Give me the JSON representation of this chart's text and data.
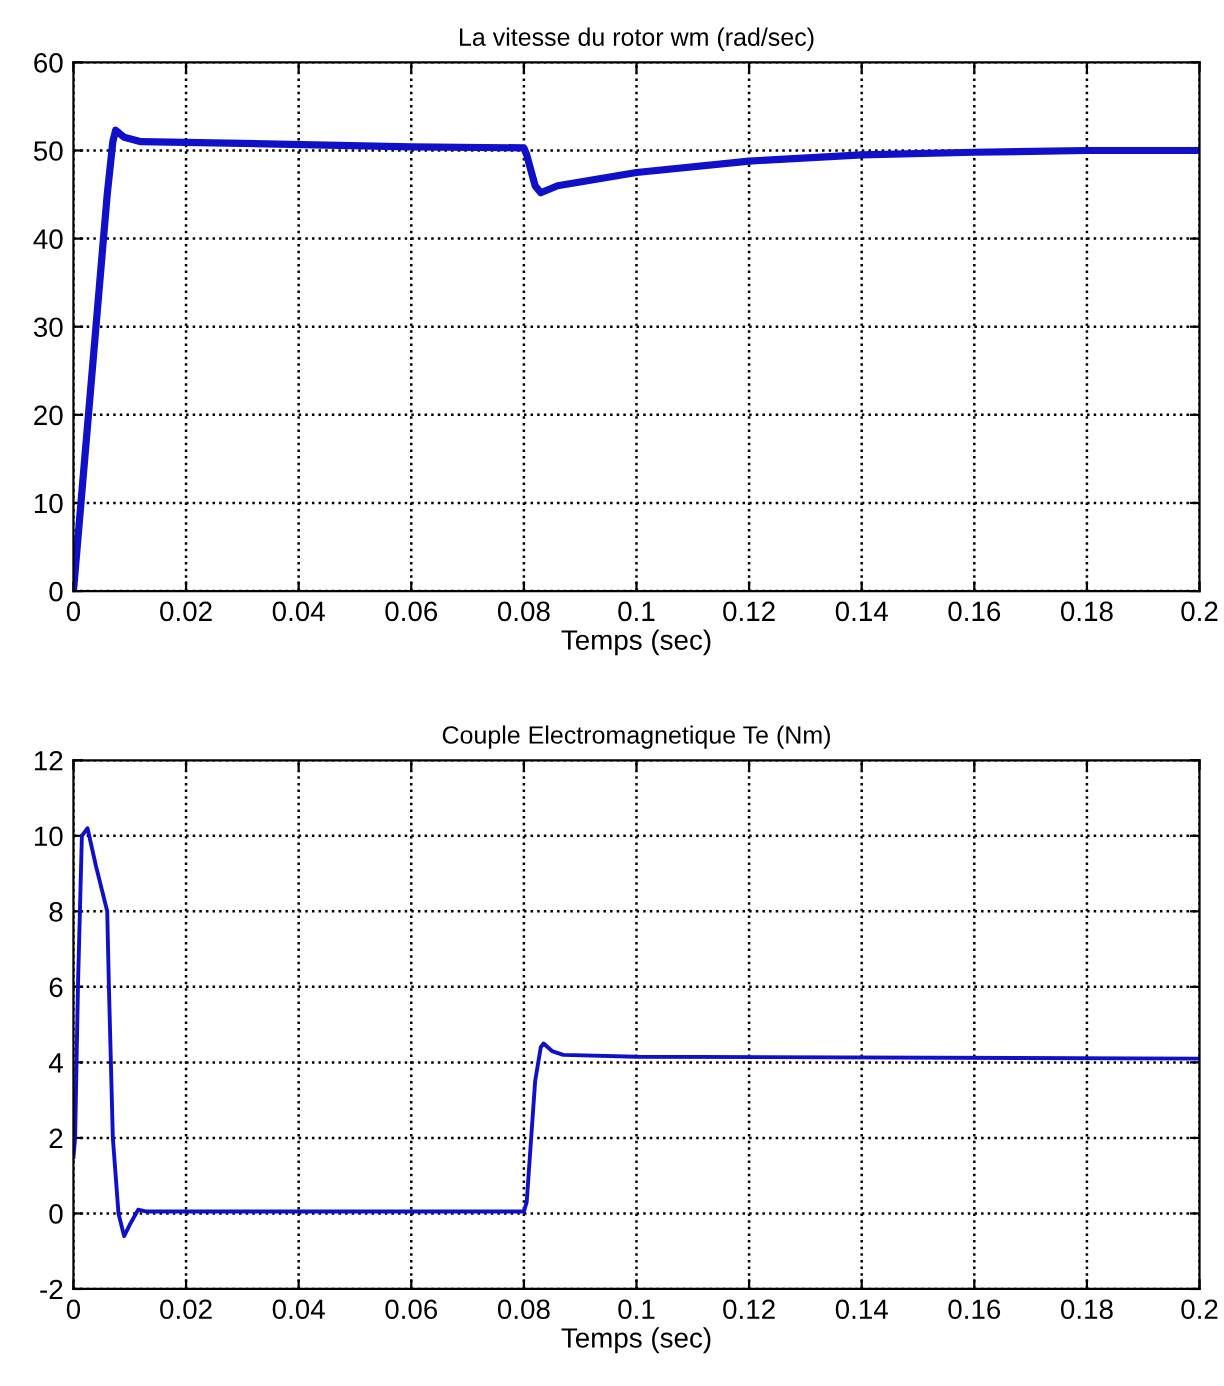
{
  "chart_data": [
    {
      "type": "line",
      "title": "La vitesse du rotor wm (rad/sec)",
      "xlabel": "Temps (sec)",
      "xlim": [
        0,
        0.2
      ],
      "xticks": [
        0,
        0.02,
        0.04,
        0.06,
        0.08,
        0.1,
        0.12,
        0.14,
        0.16,
        0.18,
        0.2
      ],
      "ylim": [
        0,
        60
      ],
      "yticks": [
        0,
        10,
        20,
        30,
        40,
        50,
        60
      ],
      "grid": true,
      "line_style": "solid",
      "marker": "none",
      "series": [
        {
          "color": "#1010c8",
          "x": [
            0,
            0.002,
            0.004,
            0.006,
            0.007,
            0.0075,
            0.009,
            0.012,
            0.03,
            0.06,
            0.08,
            0.0805,
            0.082,
            0.083,
            0.086,
            0.1,
            0.12,
            0.14,
            0.16,
            0.18,
            0.2
          ],
          "values": [
            0,
            15,
            30,
            45,
            51,
            52.3,
            51.5,
            51,
            50.8,
            50.4,
            50.3,
            49.5,
            46,
            45.2,
            46,
            47.5,
            48.8,
            49.5,
            49.8,
            50,
            50
          ]
        }
      ]
    },
    {
      "type": "line",
      "title": "Couple Electromagnetique Te (Nm)",
      "xlabel": "Temps (sec)",
      "xlim": [
        0,
        0.2
      ],
      "xticks": [
        0,
        0.02,
        0.04,
        0.06,
        0.08,
        0.1,
        0.12,
        0.14,
        0.16,
        0.18,
        0.2
      ],
      "ylim": [
        -2,
        12
      ],
      "yticks": [
        -2,
        0,
        2,
        4,
        6,
        8,
        10,
        12
      ],
      "grid": true,
      "line_style": "solid",
      "marker": "none",
      "series": [
        {
          "color": "#1010c8",
          "x": [
            0,
            0.0003,
            0.0008,
            0.0015,
            0.0025,
            0.004,
            0.006,
            0.0063,
            0.007,
            0.008,
            0.009,
            0.01,
            0.0115,
            0.013,
            0.08,
            0.0805,
            0.082,
            0.083,
            0.0835,
            0.085,
            0.087,
            0.1,
            0.2
          ],
          "values": [
            1.5,
            2,
            6,
            10,
            10.2,
            9.2,
            8,
            6,
            2,
            0,
            -0.6,
            -0.3,
            0.1,
            0.05,
            0.05,
            0.3,
            3.5,
            4.4,
            4.5,
            4.3,
            4.2,
            4.15,
            4.1
          ]
        }
      ]
    }
  ]
}
